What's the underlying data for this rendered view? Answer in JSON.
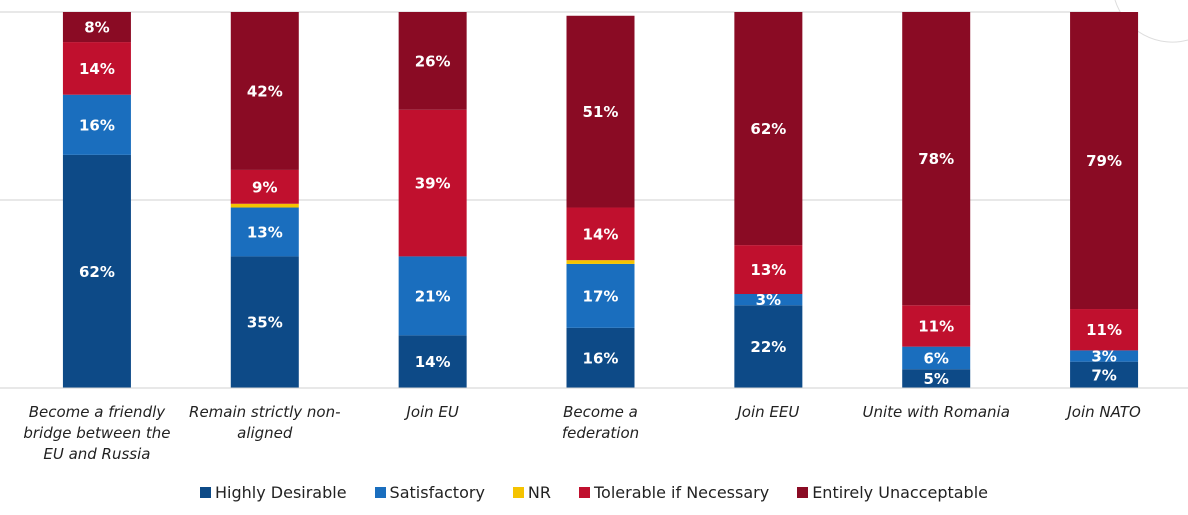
{
  "chart_data": {
    "type": "stacked_bar",
    "categories": [
      "Become a friendly bridge between the EU and Russia",
      "Remain strictly non-aligned",
      "Join EU",
      "Become a federation",
      "Join EEU",
      "Unite with Romania",
      "Join NATO"
    ],
    "series": [
      {
        "name": "Highly Desirable",
        "color": "#0d4a87",
        "values": [
          62,
          35,
          14,
          16,
          22,
          5,
          7
        ],
        "value_labels": [
          "62%",
          "35%",
          "14%",
          "16%",
          "22%",
          "5%",
          "7%"
        ]
      },
      {
        "name": "Satisfactory",
        "color": "#1a6ebe",
        "values": [
          16,
          13,
          21,
          17,
          3,
          6,
          3
        ],
        "value_labels": [
          "16%",
          "13%",
          "21%",
          "17%",
          "3%",
          "6%",
          "3%"
        ]
      },
      {
        "name": "NR",
        "color": "#f5c300",
        "values": [
          0,
          1,
          0,
          1,
          0,
          0,
          0
        ]
      },
      {
        "name": "Tolerable if Necessary",
        "color": "#c0102e",
        "values": [
          14,
          9,
          39,
          14,
          13,
          11,
          11
        ],
        "value_labels": [
          "14%",
          "9%",
          "39%",
          "14%",
          "13%",
          "11%",
          "11%"
        ]
      },
      {
        "name": "Entirely Unacceptable",
        "color": "#8a0b24",
        "values": [
          8,
          42,
          26,
          51,
          62,
          78,
          79
        ],
        "value_labels": [
          "8%",
          "42%",
          "26%",
          "51%",
          "62%",
          "78%",
          "79%"
        ]
      }
    ],
    "ylim": [
      0,
      100
    ],
    "yticks": [
      0,
      50,
      100
    ],
    "grid": true
  }
}
